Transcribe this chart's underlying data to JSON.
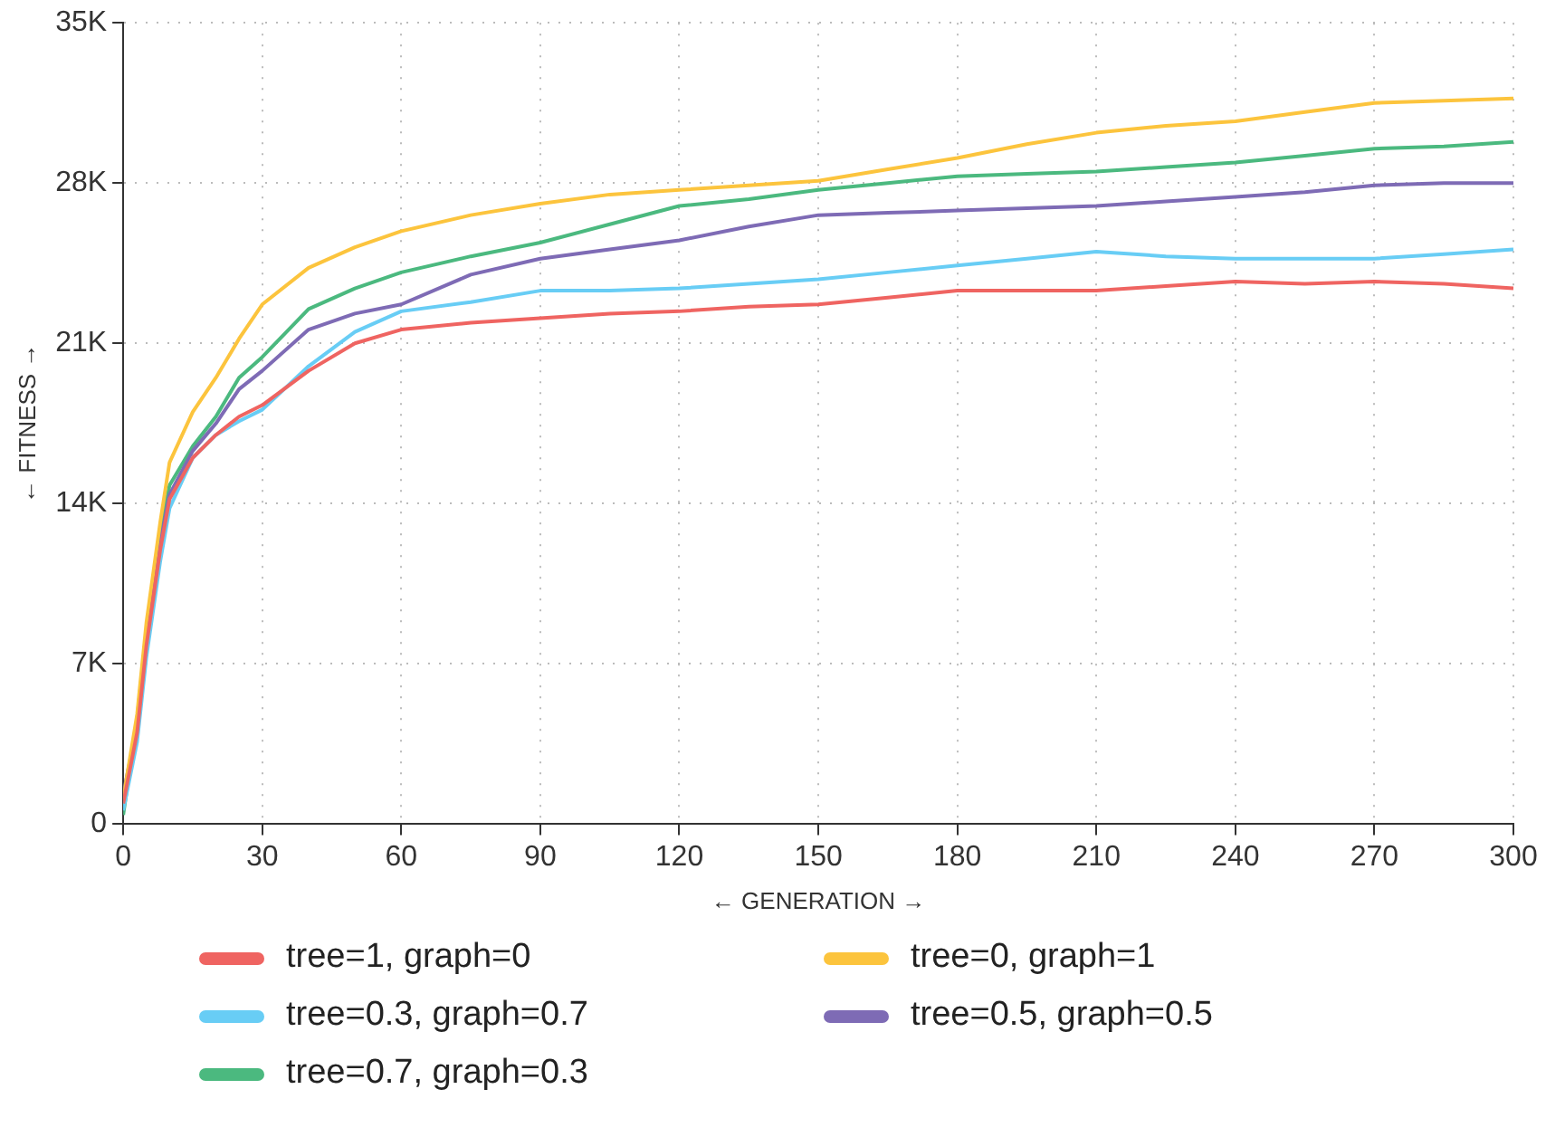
{
  "chart_data": {
    "type": "line",
    "xlabel": "← GENERATION →",
    "ylabel": "← FITNESS →",
    "x": [
      0,
      3,
      5,
      8,
      10,
      15,
      20,
      25,
      30,
      40,
      50,
      60,
      75,
      90,
      105,
      120,
      135,
      150,
      165,
      180,
      195,
      210,
      225,
      240,
      255,
      270,
      285,
      300
    ],
    "xlim": [
      0,
      300
    ],
    "xticks": [
      0,
      30,
      60,
      90,
      120,
      150,
      180,
      210,
      240,
      270,
      300
    ],
    "ylim": [
      0,
      35000
    ],
    "yticks": [
      {
        "value": 0,
        "label": "0"
      },
      {
        "value": 7000,
        "label": "7K"
      },
      {
        "value": 14000,
        "label": "14K"
      },
      {
        "value": 21000,
        "label": "21K"
      },
      {
        "value": 28000,
        "label": "28K"
      },
      {
        "value": 35000,
        "label": "35K"
      }
    ],
    "grid": true,
    "line_style": "solid",
    "marker": "none",
    "legend": "bottom",
    "series": [
      {
        "name": "tree=1, graph=0",
        "color": "#ef6461",
        "values": [
          900,
          4000,
          7800,
          12000,
          14200,
          16000,
          17000,
          17800,
          18300,
          19800,
          21000,
          21600,
          21900,
          22100,
          22300,
          22400,
          22600,
          22700,
          23000,
          23300,
          23300,
          23300,
          23500,
          23700,
          23600,
          23700,
          23600,
          23400
        ]
      },
      {
        "name": "tree=0, graph=1",
        "color": "#fcc43d",
        "values": [
          1100,
          4800,
          8800,
          13200,
          15800,
          18000,
          19500,
          21200,
          22700,
          24300,
          25200,
          25900,
          26600,
          27100,
          27500,
          27700,
          27900,
          28100,
          28600,
          29100,
          29700,
          30200,
          30500,
          30700,
          31100,
          31500,
          31600,
          31700
        ]
      },
      {
        "name": "tree=0.3, graph=0.7",
        "color": "#68cdf5",
        "values": [
          600,
          3600,
          7300,
          11500,
          13800,
          16000,
          17000,
          17600,
          18100,
          20000,
          21500,
          22400,
          22800,
          23300,
          23300,
          23400,
          23600,
          23800,
          24100,
          24400,
          24700,
          25000,
          24800,
          24700,
          24700,
          24700,
          24900,
          25100
        ]
      },
      {
        "name": "tree=0.5, graph=0.5",
        "color": "#7e6bb5",
        "values": [
          1300,
          4300,
          8000,
          12300,
          14400,
          16300,
          17500,
          19000,
          19800,
          21600,
          22300,
          22700,
          24000,
          24700,
          25100,
          25500,
          26100,
          26600,
          26700,
          26800,
          26900,
          27000,
          27200,
          27400,
          27600,
          27900,
          28000,
          28000
        ]
      },
      {
        "name": "tree=0.7, graph=0.3",
        "color": "#4bb97f",
        "values": [
          400,
          4600,
          8400,
          12800,
          14800,
          16500,
          17800,
          19500,
          20400,
          22500,
          23400,
          24100,
          24800,
          25400,
          26200,
          27000,
          27300,
          27700,
          28000,
          28300,
          28400,
          28500,
          28700,
          28900,
          29200,
          29500,
          29600,
          29800
        ]
      }
    ]
  }
}
